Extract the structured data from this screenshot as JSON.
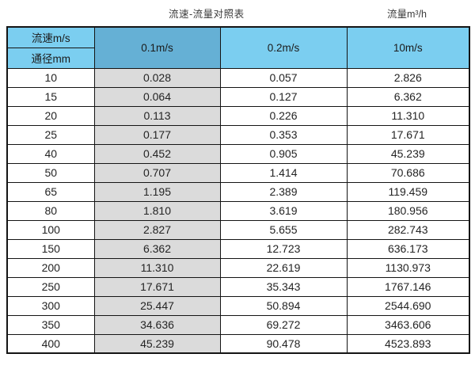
{
  "page": {
    "title": "流速-流量对照表",
    "unit_label": "流量m³/h"
  },
  "table": {
    "corner": {
      "top_label": "流速m/s",
      "bottom_label": "通径mm"
    },
    "velocity_columns": [
      "0.1m/s",
      "0.2m/s",
      "10m/s"
    ],
    "rows": [
      {
        "diameter": "10",
        "values": [
          "0.028",
          "0.057",
          "2.826"
        ]
      },
      {
        "diameter": "15",
        "values": [
          "0.064",
          "0.127",
          "6.362"
        ]
      },
      {
        "diameter": "20",
        "values": [
          "0.113",
          "0.226",
          "11.310"
        ]
      },
      {
        "diameter": "25",
        "values": [
          "0.177",
          "0.353",
          "17.671"
        ]
      },
      {
        "diameter": "40",
        "values": [
          "0.452",
          "0.905",
          "45.239"
        ]
      },
      {
        "diameter": "50",
        "values": [
          "0.707",
          "1.414",
          "70.686"
        ]
      },
      {
        "diameter": "65",
        "values": [
          "1.195",
          "2.389",
          "119.459"
        ]
      },
      {
        "diameter": "80",
        "values": [
          "1.810",
          "3.619",
          "180.956"
        ]
      },
      {
        "diameter": "100",
        "values": [
          "2.827",
          "5.655",
          "282.743"
        ]
      },
      {
        "diameter": "150",
        "values": [
          "6.362",
          "12.723",
          "636.173"
        ]
      },
      {
        "diameter": "200",
        "values": [
          "11.310",
          "22.619",
          "1130.973"
        ]
      },
      {
        "diameter": "250",
        "values": [
          "17.671",
          "35.343",
          "1767.146"
        ]
      },
      {
        "diameter": "300",
        "values": [
          "25.447",
          "50.894",
          "2544.690"
        ]
      },
      {
        "diameter": "350",
        "values": [
          "34.636",
          "69.272",
          "3463.606"
        ]
      },
      {
        "diameter": "400",
        "values": [
          "45.239",
          "90.478",
          "4523.893"
        ]
      }
    ]
  },
  "colors": {
    "header_light_blue": "#7BCEF0",
    "header_dark_blue": "#65B0D5",
    "highlight_column_gray": "#DBDBDB",
    "border_black": "#141414",
    "background_white": "#ffffff"
  }
}
